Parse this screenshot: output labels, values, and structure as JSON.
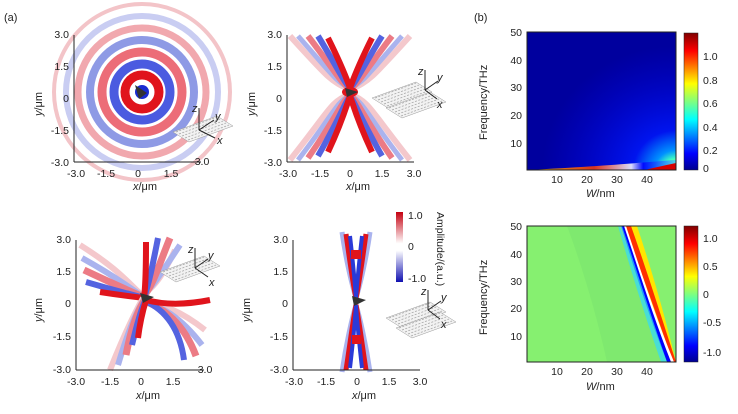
{
  "panel_labels": {
    "a": "(a)",
    "b": "(b)"
  },
  "field_plots": {
    "ticks": [
      "-3.0",
      "-1.5",
      "0",
      "1.5",
      "3.0"
    ],
    "xlabel_var": "x",
    "xlabel_unit": "/μm",
    "ylabel_var": "y",
    "ylabel_unit": "/μm",
    "axes_letters": {
      "z": "z",
      "y": "y",
      "x": "x"
    }
  },
  "amplitude_colorbar": {
    "label": "Amplitude/(a.u.)",
    "ticks": [
      "1.0",
      "0",
      "-1.0"
    ],
    "colors": {
      "positive": "#e0141c",
      "zero": "#ffffff",
      "negative": "#1522c8"
    }
  },
  "colors": {
    "field_positive": "#e0141c",
    "field_negative": "#1a2bd0",
    "map_low": "#00008b",
    "map_mid": "#7cfc52",
    "map_high": "#8b0000"
  },
  "chart_data": [
    {
      "type": "heatmap",
      "xlabel_var": "W",
      "xlabel_unit": "/nm",
      "ylabel": "Frequency/THz",
      "x_ticks": [
        "10",
        "20",
        "30",
        "40"
      ],
      "y_ticks": [
        "10",
        "20",
        "30",
        "40",
        "50"
      ],
      "xlim": [
        0,
        50
      ],
      "ylim": [
        0,
        50
      ],
      "colorbar_ticks": [
        "1.0",
        "0.8",
        "0.6",
        "0.4",
        "0.2",
        "0"
      ],
      "colorbar_range": [
        0,
        1.15
      ],
      "colormap": "jet"
    },
    {
      "type": "heatmap",
      "xlabel_var": "W",
      "xlabel_unit": "/nm",
      "ylabel": "Frequency/THz",
      "x_ticks": [
        "10",
        "20",
        "30",
        "40"
      ],
      "y_ticks": [
        "10",
        "20",
        "30",
        "40",
        "50"
      ],
      "xlim": [
        0,
        50
      ],
      "ylim": [
        0,
        50
      ],
      "colorbar_ticks": [
        "1.0",
        "0.5",
        "0",
        "-0.5",
        "-1.0"
      ],
      "colorbar_range": [
        -1.2,
        1.2
      ],
      "colormap": "jet"
    }
  ]
}
